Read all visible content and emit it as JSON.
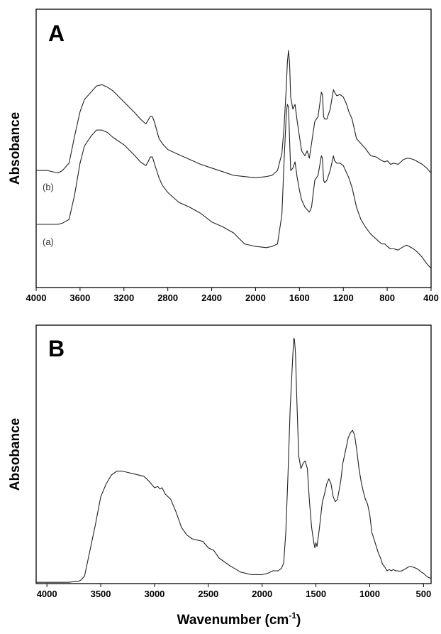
{
  "chart_data": [
    {
      "panel": "A",
      "type": "line",
      "title": "",
      "xlabel": "",
      "ylabel": "Absobance",
      "xlim": [
        4000,
        400
      ],
      "x_reversed": true,
      "xticks": [
        4000,
        3600,
        3200,
        2800,
        2400,
        2000,
        1600,
        1200,
        800,
        400
      ],
      "yticks_shown": false,
      "grid": false,
      "legend": "none",
      "ylim": [
        0,
        1
      ],
      "series": [
        {
          "name": "(b)",
          "x": [
            4000,
            3900,
            3800,
            3760,
            3700,
            3650,
            3600,
            3560,
            3500,
            3450,
            3400,
            3350,
            3300,
            3200,
            3100,
            3050,
            3000,
            2980,
            2960,
            2940,
            2920,
            2880,
            2850,
            2800,
            2700,
            2600,
            2500,
            2400,
            2300,
            2200,
            2100,
            2000,
            1900,
            1850,
            1800,
            1760,
            1740,
            1720,
            1710,
            1700,
            1690,
            1680,
            1660,
            1640,
            1620,
            1600,
            1580,
            1550,
            1530,
            1510,
            1490,
            1460,
            1430,
            1400,
            1390,
            1380,
            1370,
            1350,
            1320,
            1290,
            1280,
            1260,
            1230,
            1200,
            1170,
            1150,
            1120,
            1080,
            1040,
            1000,
            950,
            900,
            850,
            820,
            800,
            770,
            740,
            700,
            650,
            620,
            600,
            560,
            520,
            480,
            440,
            400
          ],
          "y": [
            0.42,
            0.42,
            0.41,
            0.42,
            0.45,
            0.56,
            0.66,
            0.71,
            0.74,
            0.765,
            0.77,
            0.76,
            0.745,
            0.7,
            0.655,
            0.63,
            0.61,
            0.625,
            0.64,
            0.64,
            0.615,
            0.55,
            0.53,
            0.505,
            0.485,
            0.465,
            0.445,
            0.43,
            0.415,
            0.4,
            0.395,
            0.39,
            0.395,
            0.4,
            0.42,
            0.49,
            0.6,
            0.76,
            0.86,
            0.91,
            0.86,
            0.72,
            0.67,
            0.69,
            0.62,
            0.56,
            0.5,
            0.48,
            0.5,
            0.47,
            0.53,
            0.62,
            0.64,
            0.74,
            0.73,
            0.64,
            0.63,
            0.63,
            0.67,
            0.75,
            0.74,
            0.725,
            0.73,
            0.72,
            0.69,
            0.66,
            0.63,
            0.55,
            0.53,
            0.51,
            0.48,
            0.475,
            0.46,
            0.455,
            0.46,
            0.445,
            0.45,
            0.445,
            0.465,
            0.47,
            0.47,
            0.465,
            0.455,
            0.445,
            0.43,
            0.41
          ]
        },
        {
          "name": "(a)",
          "x": [
            4000,
            3900,
            3800,
            3760,
            3700,
            3650,
            3600,
            3560,
            3500,
            3450,
            3400,
            3350,
            3300,
            3200,
            3100,
            3050,
            3000,
            2980,
            2960,
            2940,
            2920,
            2880,
            2850,
            2800,
            2700,
            2600,
            2500,
            2400,
            2300,
            2200,
            2100,
            2000,
            1900,
            1850,
            1800,
            1760,
            1740,
            1720,
            1710,
            1700,
            1690,
            1680,
            1660,
            1640,
            1620,
            1600,
            1580,
            1550,
            1530,
            1510,
            1490,
            1460,
            1430,
            1400,
            1390,
            1380,
            1370,
            1350,
            1320,
            1290,
            1280,
            1260,
            1230,
            1200,
            1170,
            1150,
            1120,
            1080,
            1040,
            1000,
            950,
            900,
            850,
            820,
            800,
            770,
            740,
            700,
            650,
            620,
            600,
            560,
            520,
            480,
            440,
            400
          ],
          "y": [
            0.2,
            0.2,
            0.2,
            0.205,
            0.22,
            0.32,
            0.45,
            0.52,
            0.56,
            0.585,
            0.585,
            0.575,
            0.555,
            0.525,
            0.48,
            0.455,
            0.44,
            0.455,
            0.475,
            0.475,
            0.445,
            0.39,
            0.36,
            0.33,
            0.29,
            0.27,
            0.245,
            0.21,
            0.19,
            0.165,
            0.12,
            0.11,
            0.105,
            0.11,
            0.12,
            0.24,
            0.46,
            0.65,
            0.69,
            0.68,
            0.55,
            0.42,
            0.43,
            0.455,
            0.39,
            0.34,
            0.3,
            0.27,
            0.26,
            0.25,
            0.27,
            0.38,
            0.4,
            0.48,
            0.47,
            0.38,
            0.37,
            0.38,
            0.42,
            0.48,
            0.46,
            0.45,
            0.45,
            0.44,
            0.41,
            0.39,
            0.35,
            0.27,
            0.22,
            0.19,
            0.16,
            0.14,
            0.12,
            0.12,
            0.11,
            0.1,
            0.1,
            0.095,
            0.11,
            0.115,
            0.11,
            0.1,
            0.085,
            0.065,
            0.04,
            0.02
          ]
        }
      ],
      "annotations": [
        "A"
      ]
    },
    {
      "panel": "B",
      "type": "line",
      "title": "",
      "xlabel": "Wavenumber (cm-1)",
      "ylabel": "Absobance",
      "xlim": [
        4100,
        430
      ],
      "x_reversed": true,
      "xticks": [
        4000,
        3500,
        3000,
        2500,
        2000,
        1500,
        1000,
        500
      ],
      "yticks_shown": false,
      "grid": false,
      "legend": "none",
      "ylim": [
        0,
        1
      ],
      "series": [
        {
          "x": [
            4100,
            3800,
            3700,
            3680,
            3650,
            3600,
            3550,
            3500,
            3450,
            3400,
            3350,
            3300,
            3250,
            3200,
            3100,
            3050,
            3000,
            2970,
            2950,
            2930,
            2900,
            2850,
            2800,
            2750,
            2700,
            2650,
            2600,
            2550,
            2500,
            2450,
            2400,
            2300,
            2200,
            2100,
            2000,
            1950,
            1900,
            1850,
            1820,
            1800,
            1780,
            1760,
            1740,
            1720,
            1710,
            1705,
            1700,
            1690,
            1680,
            1660,
            1640,
            1620,
            1600,
            1580,
            1560,
            1540,
            1520,
            1510,
            1500,
            1490,
            1470,
            1440,
            1420,
            1400,
            1380,
            1360,
            1340,
            1320,
            1300,
            1270,
            1250,
            1220,
            1200,
            1180,
            1160,
            1140,
            1120,
            1100,
            1080,
            1060,
            1040,
            1020,
            1000,
            980,
            950,
            920,
            900,
            880,
            860,
            840,
            820,
            800,
            780,
            760,
            740,
            720,
            700,
            680,
            660,
            640,
            620,
            600,
            580,
            560,
            540,
            520,
            500,
            480,
            460,
            440,
            430
          ],
          "y": [
            0.005,
            0.005,
            0.01,
            0.015,
            0.03,
            0.13,
            0.23,
            0.34,
            0.39,
            0.425,
            0.44,
            0.44,
            0.435,
            0.43,
            0.42,
            0.4,
            0.375,
            0.38,
            0.37,
            0.375,
            0.35,
            0.33,
            0.28,
            0.22,
            0.19,
            0.175,
            0.17,
            0.165,
            0.14,
            0.13,
            0.1,
            0.07,
            0.045,
            0.035,
            0.035,
            0.04,
            0.05,
            0.05,
            0.06,
            0.08,
            0.2,
            0.42,
            0.68,
            0.85,
            0.93,
            0.96,
            0.955,
            0.9,
            0.75,
            0.5,
            0.45,
            0.47,
            0.48,
            0.45,
            0.32,
            0.22,
            0.16,
            0.14,
            0.16,
            0.145,
            0.21,
            0.32,
            0.35,
            0.39,
            0.41,
            0.39,
            0.34,
            0.32,
            0.33,
            0.4,
            0.47,
            0.53,
            0.57,
            0.59,
            0.6,
            0.58,
            0.52,
            0.45,
            0.4,
            0.36,
            0.33,
            0.31,
            0.27,
            0.2,
            0.16,
            0.12,
            0.1,
            0.075,
            0.065,
            0.05,
            0.055,
            0.05,
            0.055,
            0.05,
            0.05,
            0.048,
            0.05,
            0.055,
            0.06,
            0.065,
            0.068,
            0.065,
            0.062,
            0.058,
            0.052,
            0.045,
            0.04,
            0.032,
            0.025,
            0.022,
            0.02
          ]
        }
      ],
      "annotations": [
        "B"
      ]
    }
  ],
  "labels": {
    "panelA_letter": "A",
    "panelB_letter": "B",
    "ylabel_A": "Absobance",
    "ylabel_B": "Absobance",
    "xlabel_main": "Wavenumber (cm",
    "xlabel_sup": "-1",
    "xlabel_close": ")",
    "trace_b": "(b)",
    "trace_a": "(a)"
  },
  "colors": {
    "line": "#222222",
    "frame": "#000000",
    "background": "#ffffff"
  }
}
